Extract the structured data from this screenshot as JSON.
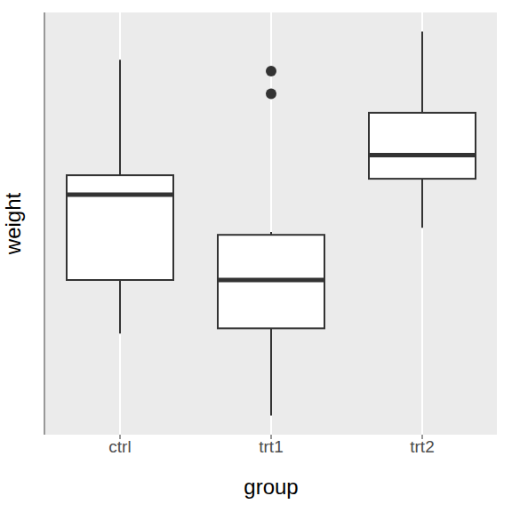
{
  "chart_data": {
    "type": "box",
    "x_label": "group",
    "y_label": "weight",
    "categories": [
      "ctrl",
      "trt1",
      "trt2"
    ],
    "whisker_low": [
      4.17,
      3.59,
      4.92
    ],
    "q1": [
      4.55,
      4.2075,
      5.2675
    ],
    "median": [
      5.155,
      4.55,
      5.435
    ],
    "q3": [
      5.2925,
      4.87,
      5.735
    ],
    "whisker_high": [
      6.11,
      4.89,
      6.31
    ],
    "outliers": [
      [],
      [
        5.87,
        6.03
      ],
      []
    ],
    "ylim": [
      3.454,
      6.446
    ],
    "grid": true,
    "tick_labels": "x",
    "color": "#333333"
  }
}
